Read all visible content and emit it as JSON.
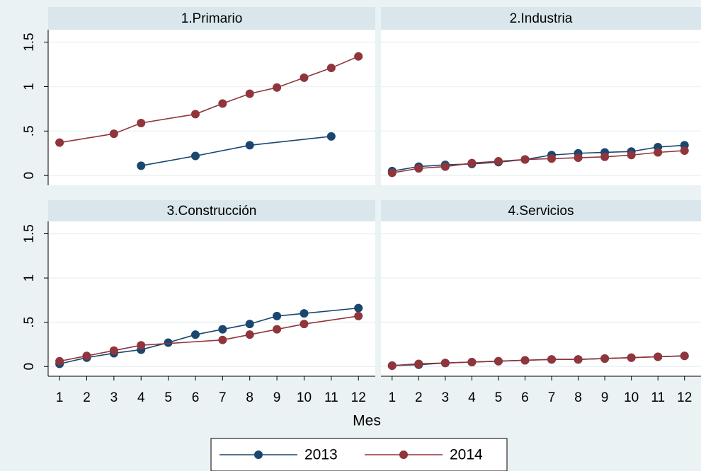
{
  "chart_data": [
    {
      "type": "line",
      "title": "1.Primario",
      "xlim": [
        0.58,
        12.62
      ],
      "ylim": [
        -0.11,
        1.64
      ],
      "yticks": [
        0,
        {
          "value": 0.5,
          "label": ".5"
        },
        1,
        1.5
      ],
      "grid": true,
      "series": [
        {
          "name": "2013",
          "color": "#1a476f",
          "x": [
            4,
            6,
            8,
            11
          ],
          "values": [
            0.11,
            0.22,
            0.34,
            0.44
          ]
        },
        {
          "name": "2014",
          "color": "#90353b",
          "x": [
            1,
            3,
            4,
            6,
            7,
            8,
            9,
            10,
            11,
            12
          ],
          "values": [
            0.37,
            0.47,
            0.59,
            0.69,
            0.81,
            0.92,
            0.99,
            1.1,
            1.21,
            1.34
          ]
        }
      ]
    },
    {
      "type": "line",
      "title": "2.Industria",
      "xlim": [
        0.58,
        12.62
      ],
      "ylim": [
        -0.11,
        1.64
      ],
      "yticks": [
        0,
        {
          "value": 0.5,
          "label": ".5"
        },
        1,
        1.5
      ],
      "grid": true,
      "series": [
        {
          "name": "2013",
          "color": "#1a476f",
          "x": [
            1,
            2,
            3,
            4,
            5,
            6,
            7,
            8,
            9,
            10,
            11,
            12
          ],
          "values": [
            0.05,
            0.1,
            0.12,
            0.13,
            0.15,
            0.18,
            0.23,
            0.25,
            0.26,
            0.27,
            0.32,
            0.34
          ]
        },
        {
          "name": "2014",
          "color": "#90353b",
          "x": [
            1,
            2,
            3,
            4,
            5,
            6,
            7,
            8,
            9,
            10,
            11,
            12
          ],
          "values": [
            0.03,
            0.08,
            0.1,
            0.14,
            0.16,
            0.18,
            0.19,
            0.2,
            0.21,
            0.23,
            0.26,
            0.28
          ]
        }
      ]
    },
    {
      "type": "line",
      "title": "3.Construcción",
      "xlim": [
        0.58,
        12.62
      ],
      "ylim": [
        -0.11,
        1.64
      ],
      "yticks": [
        0,
        {
          "value": 0.5,
          "label": ".5"
        },
        1,
        1.5
      ],
      "grid": true,
      "xticks": [
        1,
        2,
        3,
        4,
        5,
        6,
        7,
        8,
        9,
        10,
        11,
        12
      ],
      "x_label": "Mes",
      "series": [
        {
          "name": "2013",
          "color": "#1a476f",
          "x": [
            1,
            2,
            3,
            4,
            5,
            6,
            7,
            8,
            9,
            10,
            12
          ],
          "values": [
            0.03,
            0.1,
            0.15,
            0.19,
            0.27,
            0.36,
            0.42,
            0.48,
            0.57,
            0.6,
            0.66
          ]
        },
        {
          "name": "2014",
          "color": "#90353b",
          "x": [
            1,
            2,
            3,
            4,
            7,
            8,
            9,
            10,
            12
          ],
          "values": [
            0.06,
            0.12,
            0.18,
            0.24,
            0.3,
            0.36,
            0.42,
            0.48,
            0.57
          ]
        }
      ]
    },
    {
      "type": "line",
      "title": "4.Servicios",
      "xlim": [
        0.58,
        12.62
      ],
      "ylim": [
        -0.11,
        1.64
      ],
      "yticks": [
        0,
        {
          "value": 0.5,
          "label": ".5"
        },
        1,
        1.5
      ],
      "grid": true,
      "xticks": [
        1,
        2,
        3,
        4,
        5,
        6,
        7,
        8,
        9,
        10,
        11,
        12
      ],
      "series": [
        {
          "name": "2013",
          "color": "#1a476f",
          "x": [
            1,
            2,
            3,
            4,
            5,
            6,
            7,
            8,
            9,
            10,
            11,
            12
          ],
          "values": [
            0.01,
            0.02,
            0.04,
            0.05,
            0.06,
            0.07,
            0.08,
            0.08,
            0.09,
            0.1,
            0.11,
            0.12
          ]
        },
        {
          "name": "2014",
          "color": "#90353b",
          "x": [
            1,
            2,
            3,
            4,
            5,
            6,
            7,
            8,
            9,
            10,
            11,
            12
          ],
          "values": [
            0.01,
            0.03,
            0.04,
            0.05,
            0.06,
            0.07,
            0.08,
            0.08,
            0.09,
            0.1,
            0.11,
            0.12
          ]
        }
      ]
    }
  ]
}
